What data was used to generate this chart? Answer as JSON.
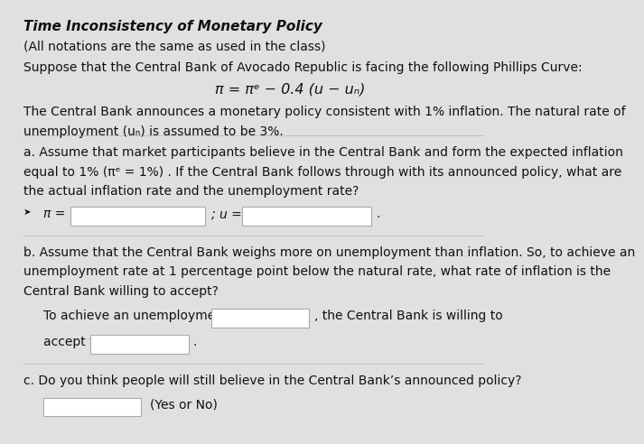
{
  "title": "Time Inconsistency of Monetary Policy",
  "subtitle": "(All notations are the same as used in the class)",
  "intro": "Suppose that the Central Bank of Avocado Republic is facing the following Phillips Curve:",
  "formula": "π = πᵉ − 0.4 (u − uₙ)",
  "desc1_line1": "The Central Bank announces a monetary policy consistent with 1% inflation. The natural rate of",
  "desc1_line2": "unemployment (uₙ) is assumed to be 3%.",
  "part_a_line1": "a. Assume that market participants believe in the Central Bank and form the expected inflation",
  "part_a_line2": "equal to 1% (πᵉ = 1%) . If the Central Bank follows through with its announced policy, what are",
  "part_a_line3": "the actual inflation rate and the unemployment rate?",
  "part_b_line1": "b. Assume that the Central Bank weighs more on unemployment than inflation. So, to achieve an",
  "part_b_line2": "unemployment rate at 1 percentage point below the natural rate, what rate of inflation is the",
  "part_b_line3": "Central Bank willing to accept?",
  "part_b_achieve_pre": "To achieve an unemployment rate at u =",
  "part_b_achieve_post": ", the Central Bank is willing to",
  "part_b_accept_pre": "accept π =",
  "part_c_label": "c. Do you think people will still believe in the Central Bank’s announced policy?",
  "part_c_sub": "(Yes or No)",
  "bg_color": "#e0e0e0",
  "box_color": "#ffffff",
  "box_border": "#aaaaaa",
  "text_color": "#111111",
  "font_size": 10.0,
  "title_font_size": 11.0
}
